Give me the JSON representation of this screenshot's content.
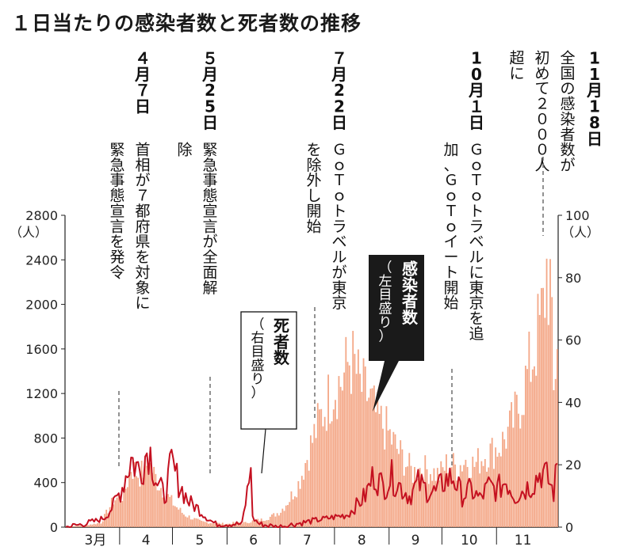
{
  "title": "１日当たりの感染者数と死者数の推移",
  "chart_data": {
    "type": "bar+line",
    "title": "１日当たりの感染者数と死者数の推移",
    "left_axis": {
      "ticks": [
        0,
        400,
        800,
        1200,
        1600,
        2000,
        2400,
        2800
      ],
      "unit": "（人）",
      "ylim": [
        0,
        2800
      ]
    },
    "right_axis": {
      "ticks": [
        0,
        20,
        40,
        60,
        80,
        100
      ],
      "unit": "（人）",
      "ylim": [
        0,
        100
      ]
    },
    "month_labels": [
      "3月",
      "4",
      "5",
      "6",
      "7",
      "8",
      "9",
      "10",
      "11"
    ],
    "bars_series": {
      "name": "感染者数（左目盛り）",
      "color": "#f4a888",
      "keypoints": [
        [
          0,
          3
        ],
        [
          10,
          15
        ],
        [
          20,
          40
        ],
        [
          27,
          250
        ],
        [
          33,
          300
        ],
        [
          37,
          560
        ],
        [
          42,
          480
        ],
        [
          47,
          600
        ],
        [
          52,
          420
        ],
        [
          57,
          300
        ],
        [
          62,
          200
        ],
        [
          67,
          120
        ],
        [
          72,
          80
        ],
        [
          77,
          50
        ],
        [
          82,
          40
        ],
        [
          87,
          35
        ],
        [
          92,
          30
        ],
        [
          97,
          45
        ],
        [
          102,
          40
        ],
        [
          107,
          60
        ],
        [
          112,
          70
        ],
        [
          117,
          100
        ],
        [
          122,
          150
        ],
        [
          127,
          260
        ],
        [
          132,
          400
        ],
        [
          137,
          650
        ],
        [
          142,
          900
        ],
        [
          147,
          1100
        ],
        [
          152,
          1300
        ],
        [
          157,
          1350
        ],
        [
          161,
          1560
        ],
        [
          164,
          1480
        ],
        [
          167,
          1300
        ],
        [
          172,
          1200
        ],
        [
          177,
          1000
        ],
        [
          182,
          900
        ],
        [
          187,
          750
        ],
        [
          192,
          620
        ],
        [
          197,
          500
        ],
        [
          202,
          550
        ],
        [
          207,
          520
        ],
        [
          212,
          480
        ],
        [
          217,
          600
        ],
        [
          222,
          550
        ],
        [
          227,
          620
        ],
        [
          232,
          570
        ],
        [
          237,
          660
        ],
        [
          242,
          700
        ],
        [
          247,
          760
        ],
        [
          252,
          900
        ],
        [
          257,
          1100
        ],
        [
          262,
          1400
        ],
        [
          267,
          1700
        ],
        [
          271,
          2000
        ],
        [
          273,
          2380
        ],
        [
          275,
          2240
        ],
        [
          277,
          1200
        ],
        [
          279,
          1800
        ]
      ]
    },
    "line_series": {
      "name": "死者数（右目盛り）",
      "color": "#c41020",
      "keypoints": [
        [
          0,
          0
        ],
        [
          10,
          1
        ],
        [
          17,
          2
        ],
        [
          22,
          3
        ],
        [
          27,
          7
        ],
        [
          32,
          13
        ],
        [
          37,
          22
        ],
        [
          42,
          18
        ],
        [
          47,
          26
        ],
        [
          52,
          14
        ],
        [
          56,
          10
        ],
        [
          60,
          20
        ],
        [
          65,
          13
        ],
        [
          70,
          8
        ],
        [
          75,
          6
        ],
        [
          80,
          3
        ],
        [
          85,
          1
        ],
        [
          90,
          1
        ],
        [
          95,
          1
        ],
        [
          100,
          1
        ],
        [
          105,
          18
        ],
        [
          106,
          3
        ],
        [
          110,
          1
        ],
        [
          120,
          0
        ],
        [
          130,
          1
        ],
        [
          140,
          2
        ],
        [
          150,
          3
        ],
        [
          160,
          4
        ],
        [
          170,
          10
        ],
        [
          175,
          17
        ],
        [
          180,
          13
        ],
        [
          185,
          16
        ],
        [
          190,
          13
        ],
        [
          195,
          10
        ],
        [
          200,
          14
        ],
        [
          205,
          12
        ],
        [
          210,
          11
        ],
        [
          215,
          15
        ],
        [
          220,
          16
        ],
        [
          225,
          10
        ],
        [
          230,
          12
        ],
        [
          235,
          9
        ],
        [
          240,
          13
        ],
        [
          245,
          12
        ],
        [
          250,
          15
        ],
        [
          255,
          10
        ],
        [
          260,
          12
        ],
        [
          265,
          14
        ],
        [
          270,
          18
        ],
        [
          274,
          15
        ],
        [
          277,
          11
        ],
        [
          279,
          20
        ]
      ]
    },
    "annotations": [
      {
        "id": "apr7",
        "date": "４月７日",
        "text": "首相が７都府県を対象に緊急事態宣言を発令"
      },
      {
        "id": "may25",
        "date": "５月25日",
        "text": "緊急事態宣言が全面解除"
      },
      {
        "id": "jul22",
        "date": "７月22日",
        "text": "ＧｏＴｏトラベルが東京を除外し開始"
      },
      {
        "id": "oct1",
        "date": "10月１日",
        "text": "ＧｏＴｏトラベルに東京を追加、ＧｏＴｏイート開始"
      },
      {
        "id": "nov18",
        "date": "11月18日",
        "text": "全国の感染者数が初めて２０００人超に"
      }
    ],
    "callouts": [
      {
        "id": "deaths",
        "text": "死者数",
        "sub": "（右目盛り）"
      },
      {
        "id": "cases",
        "text": "感染者数",
        "sub": "（左目盛り）"
      }
    ]
  }
}
